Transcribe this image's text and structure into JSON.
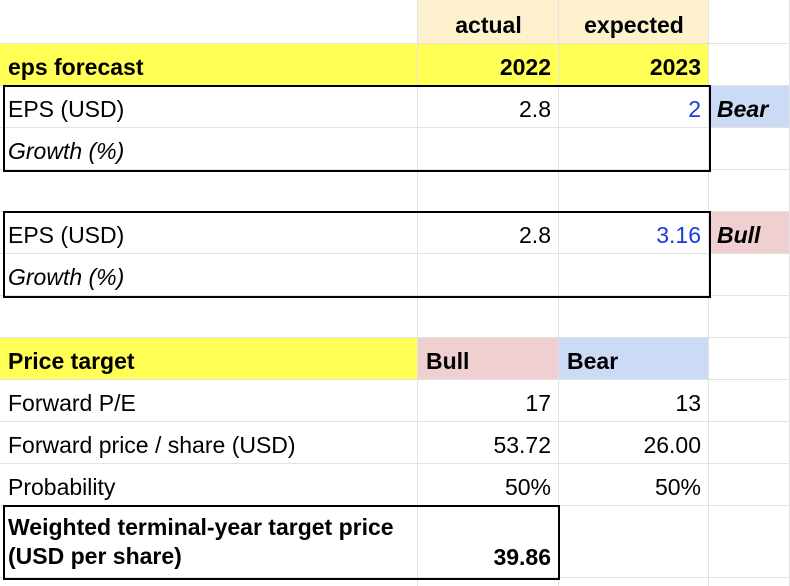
{
  "colors": {
    "yellow": "#ffff55",
    "header_tan": "#fdf2cd",
    "bull_pink": "#efcfcf",
    "bear_blue": "#cbdaf5",
    "input_blue": "#1a3bdd"
  },
  "header": {
    "actual_label": "actual",
    "expected_label": "expected"
  },
  "eps_forecast": {
    "title": "eps forecast",
    "year_actual": "2022",
    "year_expected": "2023"
  },
  "bear_case": {
    "eps_label": "EPS (USD)",
    "eps_actual": "2.8",
    "eps_expected": "2",
    "tag": "Bear",
    "growth_label": "Growth (%)"
  },
  "bull_case": {
    "eps_label": "EPS (USD)",
    "eps_actual": "2.8",
    "eps_expected": "3.16",
    "tag": "Bull",
    "growth_label": "Growth (%)"
  },
  "price_target": {
    "title": "Price target",
    "bull_label": "Bull",
    "bear_label": "Bear",
    "rows": [
      {
        "label": "Forward P/E",
        "bull": "17",
        "bear": "13"
      },
      {
        "label": "Forward price / share (USD)",
        "bull": "53.72",
        "bear": "26.00"
      },
      {
        "label": "Probability",
        "bull": "50%",
        "bear": "50%"
      }
    ],
    "weighted_label": "Weighted terminal-year target price (USD per share)",
    "weighted_value": "39.86"
  }
}
